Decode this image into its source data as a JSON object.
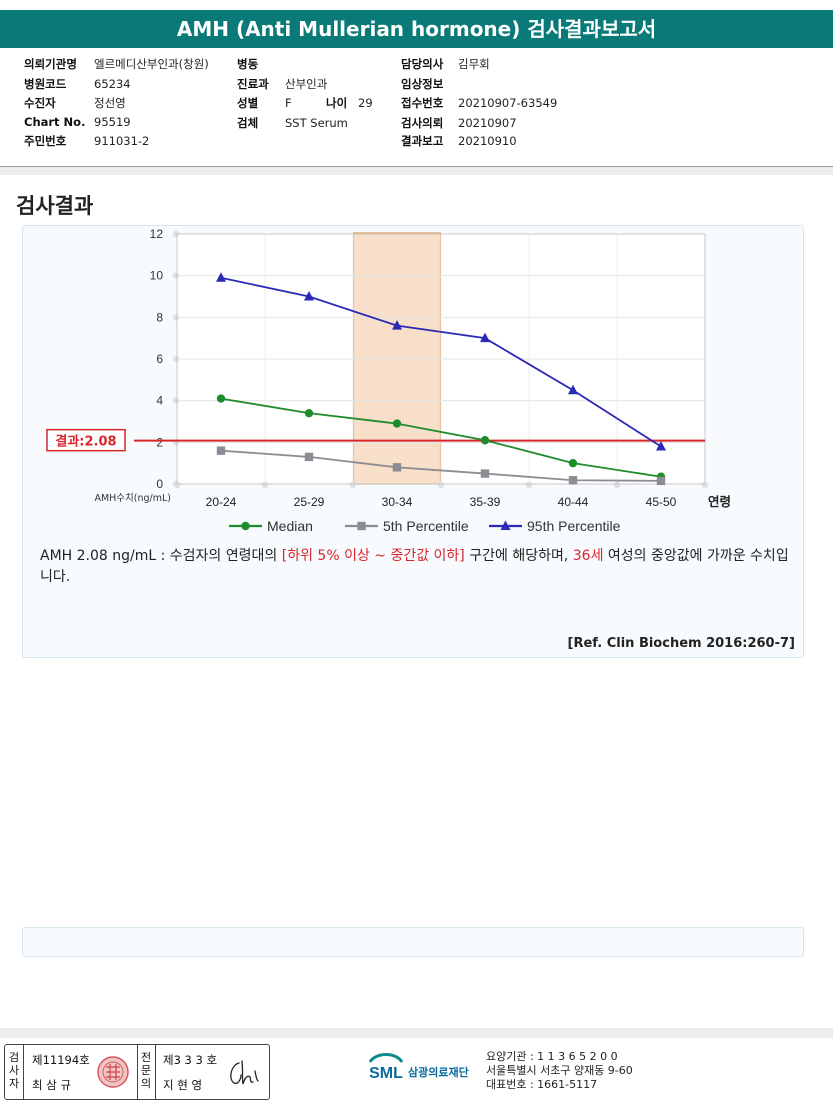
{
  "header": {
    "title": "AMH (Anti Mullerian hormone) 검사결과보고서"
  },
  "info": {
    "col1": [
      {
        "label": "의뢰기관명",
        "value": "엘르메디산부인과(창원)"
      },
      {
        "label": "병원코드",
        "value": "65234"
      },
      {
        "label": "수진자",
        "value": "정선영"
      },
      {
        "label": "Chart No.",
        "value": "95519"
      },
      {
        "label": "주민번호",
        "value": "911031-2"
      }
    ],
    "col2": [
      {
        "label": "병동",
        "value": ""
      },
      {
        "label": "진료과",
        "value": "산부인과"
      },
      {
        "label": "성별",
        "value": "F"
      },
      {
        "label": "검체",
        "value": "SST Serum"
      }
    ],
    "age": {
      "label": "나이",
      "value": "29"
    },
    "col3": [
      {
        "label": "담당의사",
        "value": "김무회"
      },
      {
        "label": "임상정보",
        "value": ""
      },
      {
        "label": "접수번호",
        "value": "20210907-63549"
      },
      {
        "label": "검사의뢰",
        "value": "20210907"
      },
      {
        "label": "결과보고",
        "value": "20210910"
      }
    ]
  },
  "section_title": "검사결과",
  "chart_data": {
    "type": "line",
    "categories": [
      "20-24",
      "25-29",
      "30-34",
      "35-39",
      "40-44",
      "45-50"
    ],
    "x_unit_label": "연령",
    "y_label": "AMH수치(ng/mL)",
    "ylim": [
      0,
      12
    ],
    "y_ticks": [
      "0",
      "2",
      "4",
      "6",
      "8",
      "10",
      "12"
    ],
    "grid": true,
    "legend_position": "bottom",
    "series": [
      {
        "name": "Median",
        "values": [
          4.1,
          3.4,
          2.9,
          2.1,
          1.0,
          0.35
        ],
        "color": "#1e8c2a",
        "marker": "circle"
      },
      {
        "name": "5th Percentile",
        "values": [
          1.6,
          1.3,
          0.8,
          0.5,
          0.18,
          0.15
        ],
        "color": "#8c8c94",
        "marker": "square"
      },
      {
        "name": "95th Percentile",
        "values": [
          9.9,
          9.0,
          7.6,
          7.0,
          4.5,
          1.8
        ],
        "color": "#2a2ab4",
        "marker": "triangle"
      }
    ],
    "result_line": {
      "label": "결과:2.08",
      "value": 2.08,
      "color": "#d9262c"
    },
    "highlight_category": "30-34",
    "highlight_color": "#f7d9bf"
  },
  "description": {
    "part1": "AMH  2.08 ng/mL : 수검자의 연령대의 ",
    "range": "[하위 5% 이상 ~ 중간값 이하]",
    "part2": "  구간에 해당하며, ",
    "age_equiv": "36세",
    "part3": " 여성의 중앙값에 가까운 수치입니다."
  },
  "reference": "[Ref. Clin Biochem 2016:260-7]",
  "footer": {
    "examiner_label": [
      "검",
      "사",
      "자"
    ],
    "examiner_no": "제11194호",
    "examiner_name": "최 삼 규",
    "specialist_label": [
      "전",
      "문",
      "의"
    ],
    "specialist_no": "제3 3 3 호",
    "specialist_name": "지 현 영",
    "logo_text": "SML",
    "org_name": "삼광의료재단",
    "org_code": "요양기관 : 1 1 3 6 5 2 0 0",
    "org_address": "서울특별시 서초구 양재동 9-60",
    "org_phone": "대표번호 : 1661-5117"
  }
}
